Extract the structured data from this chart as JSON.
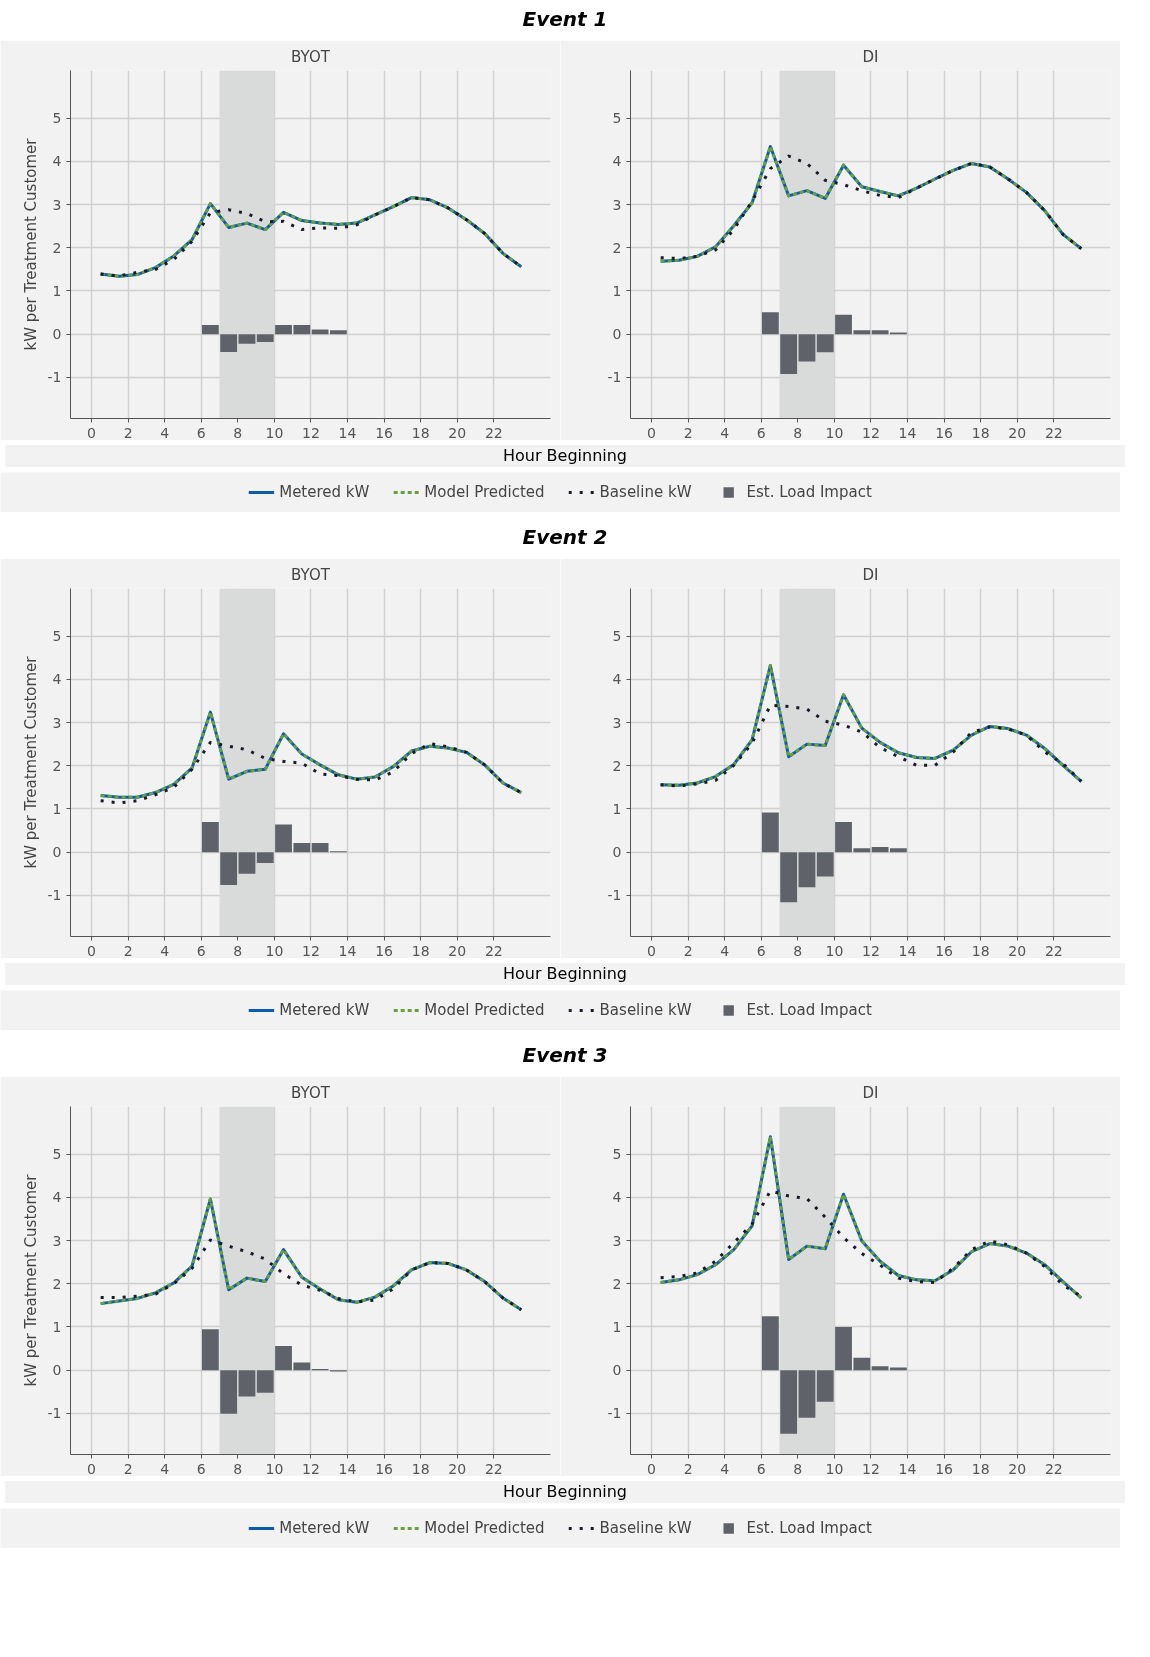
{
  "chart_data": [
    {
      "type": "line",
      "title": "Event 1",
      "subtitle": "BYOT",
      "xlabel": "Hour Beginning",
      "ylabel": "kW per Treatment Customer",
      "xlim": [
        -1.15,
        25.1
      ],
      "ylim": [
        -1.95,
        6.1
      ],
      "xticks": [
        0,
        2,
        4,
        6,
        8,
        10,
        12,
        14,
        16,
        18,
        20,
        22
      ],
      "yticks": [
        -1,
        0,
        1,
        2,
        3,
        4,
        5
      ],
      "grid": true,
      "legend": "bottom",
      "bands": [
        {
          "axis": "x",
          "from": 7,
          "to": 10,
          "color": "#d9dbdb"
        }
      ],
      "x": [
        0.5,
        1.5,
        2.5,
        3.5,
        4.5,
        5.5,
        6.5,
        7.5,
        8.5,
        9.5,
        10.5,
        11.5,
        12.5,
        13.5,
        14.5,
        15.5,
        16.5,
        17.5,
        18.5,
        19.5,
        20.5,
        21.5,
        22.5,
        23.5
      ],
      "series": [
        {
          "name": "Metered kW",
          "color": "#0b5cad",
          "line_style": "solid",
          "values": [
            1.39,
            1.34,
            1.38,
            1.54,
            1.81,
            2.19,
            3.02,
            2.47,
            2.57,
            2.42,
            2.82,
            2.63,
            2.57,
            2.54,
            2.57,
            2.76,
            2.95,
            3.16,
            3.11,
            2.92,
            2.65,
            2.33,
            1.87,
            1.56
          ]
        },
        {
          "name": "Model Predicted",
          "color": "#6a9f3f",
          "line_style": "dashed",
          "values": [
            1.39,
            1.34,
            1.38,
            1.54,
            1.81,
            2.19,
            3.02,
            2.47,
            2.57,
            2.42,
            2.82,
            2.63,
            2.57,
            2.54,
            2.57,
            2.76,
            2.95,
            3.16,
            3.11,
            2.92,
            2.65,
            2.33,
            1.87,
            1.56
          ]
        },
        {
          "name": "Baseline kW",
          "color": "#1a1a2a",
          "line_style": "dotted",
          "values": [
            1.39,
            1.35,
            1.43,
            1.5,
            1.73,
            2.15,
            2.81,
            2.88,
            2.79,
            2.6,
            2.61,
            2.42,
            2.46,
            2.45,
            2.53,
            2.76,
            2.95,
            3.16,
            3.11,
            2.92,
            2.65,
            2.33,
            1.87,
            1.56
          ]
        },
        {
          "name": "Est. Load Impact",
          "type": "bar",
          "color": "#5f6369",
          "x": [
            6.5,
            7.5,
            8.5,
            9.5,
            10.5,
            11.5,
            12.5,
            13.5
          ],
          "values": [
            0.21,
            -0.41,
            -0.22,
            -0.18,
            0.21,
            0.21,
            0.11,
            0.09
          ]
        }
      ]
    },
    {
      "type": "line",
      "subtitle": "DI",
      "xlim": [
        -1.15,
        25.1
      ],
      "ylim": [
        -1.95,
        6.1
      ],
      "xticks": [
        0,
        2,
        4,
        6,
        8,
        10,
        12,
        14,
        16,
        18,
        20,
        22
      ],
      "yticks": [
        -1,
        0,
        1,
        2,
        3,
        4,
        5
      ],
      "grid": true,
      "bands": [
        {
          "axis": "x",
          "from": 7,
          "to": 10,
          "color": "#d9dbdb"
        }
      ],
      "x": [
        0.5,
        1.5,
        2.5,
        3.5,
        4.5,
        5.5,
        6.5,
        7.5,
        8.5,
        9.5,
        10.5,
        11.5,
        12.5,
        13.5,
        14.5,
        15.5,
        16.5,
        17.5,
        18.5,
        19.5,
        20.5,
        21.5,
        22.5,
        23.5
      ],
      "series": [
        {
          "color": "#0b5cad",
          "line_style": "solid",
          "values": [
            1.69,
            1.71,
            1.8,
            2.02,
            2.51,
            3.04,
            4.34,
            3.2,
            3.32,
            3.14,
            3.91,
            3.41,
            3.3,
            3.2,
            3.38,
            3.59,
            3.79,
            3.95,
            3.87,
            3.59,
            3.28,
            2.86,
            2.31,
            1.98
          ]
        },
        {
          "color": "#6a9f3f",
          "line_style": "dashed",
          "values": [
            1.69,
            1.71,
            1.8,
            2.02,
            2.51,
            3.04,
            4.34,
            3.2,
            3.32,
            3.14,
            3.91,
            3.41,
            3.3,
            3.2,
            3.38,
            3.59,
            3.79,
            3.95,
            3.87,
            3.59,
            3.28,
            2.86,
            2.31,
            1.98
          ]
        },
        {
          "color": "#1a1a2a",
          "line_style": "dotted",
          "values": [
            1.77,
            1.75,
            1.8,
            1.95,
            2.42,
            3.08,
            3.83,
            4.12,
            3.95,
            3.56,
            3.46,
            3.32,
            3.21,
            3.16,
            3.38,
            3.59,
            3.79,
            3.95,
            3.87,
            3.59,
            3.28,
            2.86,
            2.31,
            1.98
          ]
        },
        {
          "type": "bar",
          "color": "#5f6369",
          "x": [
            6.5,
            7.5,
            8.5,
            9.5,
            10.5,
            11.5,
            12.5,
            13.5
          ],
          "values": [
            0.51,
            -0.92,
            -0.63,
            -0.42,
            0.45,
            0.09,
            0.09,
            0.04
          ]
        }
      ]
    },
    {
      "type": "line",
      "title": "Event 2",
      "subtitle": "BYOT",
      "xlabel": "Hour Beginning",
      "ylabel": "kW per Treatment Customer",
      "xlim": [
        -1.15,
        25.1
      ],
      "ylim": [
        -1.95,
        6.1
      ],
      "xticks": [
        0,
        2,
        4,
        6,
        8,
        10,
        12,
        14,
        16,
        18,
        20,
        22
      ],
      "yticks": [
        -1,
        0,
        1,
        2,
        3,
        4,
        5
      ],
      "grid": true,
      "legend": "bottom",
      "bands": [
        {
          "axis": "x",
          "from": 7,
          "to": 10,
          "color": "#d9dbdb"
        }
      ],
      "x": [
        0.5,
        1.5,
        2.5,
        3.5,
        4.5,
        5.5,
        6.5,
        7.5,
        8.5,
        9.5,
        10.5,
        11.5,
        12.5,
        13.5,
        14.5,
        15.5,
        16.5,
        17.5,
        18.5,
        19.5,
        20.5,
        21.5,
        22.5,
        23.5
      ],
      "series": [
        {
          "name": "Metered kW",
          "color": "#0b5cad",
          "line_style": "solid",
          "values": [
            1.31,
            1.27,
            1.27,
            1.38,
            1.57,
            1.95,
            3.24,
            1.69,
            1.87,
            1.92,
            2.74,
            2.27,
            2.02,
            1.79,
            1.69,
            1.74,
            1.98,
            2.34,
            2.45,
            2.41,
            2.31,
            2.02,
            1.6,
            1.38
          ]
        },
        {
          "name": "Model Predicted",
          "color": "#6a9f3f",
          "line_style": "dashed",
          "values": [
            1.31,
            1.27,
            1.27,
            1.38,
            1.57,
            1.95,
            3.24,
            1.69,
            1.87,
            1.92,
            2.74,
            2.27,
            2.02,
            1.79,
            1.69,
            1.74,
            1.98,
            2.34,
            2.45,
            2.41,
            2.31,
            2.02,
            1.6,
            1.38
          ]
        },
        {
          "name": "Baseline kW",
          "color": "#1a1a2a",
          "line_style": "dotted",
          "values": [
            1.19,
            1.14,
            1.19,
            1.33,
            1.5,
            1.92,
            2.54,
            2.45,
            2.37,
            2.17,
            2.1,
            2.06,
            1.81,
            1.77,
            1.69,
            1.67,
            1.86,
            2.28,
            2.51,
            2.44,
            2.31,
            2.02,
            1.6,
            1.38
          ]
        },
        {
          "name": "Est. Load Impact",
          "type": "bar",
          "color": "#5f6369",
          "x": [
            6.5,
            7.5,
            8.5,
            9.5,
            10.5,
            11.5,
            12.5,
            13.5
          ],
          "values": [
            0.7,
            -0.76,
            -0.5,
            -0.25,
            0.64,
            0.21,
            0.21,
            0.02
          ]
        }
      ]
    },
    {
      "type": "line",
      "subtitle": "DI",
      "xlim": [
        -1.15,
        25.1
      ],
      "ylim": [
        -1.95,
        6.1
      ],
      "xticks": [
        0,
        2,
        4,
        6,
        8,
        10,
        12,
        14,
        16,
        18,
        20,
        22
      ],
      "yticks": [
        -1,
        0,
        1,
        2,
        3,
        4,
        5
      ],
      "grid": true,
      "bands": [
        {
          "axis": "x",
          "from": 7,
          "to": 10,
          "color": "#d9dbdb"
        }
      ],
      "x": [
        0.5,
        1.5,
        2.5,
        3.5,
        4.5,
        5.5,
        6.5,
        7.5,
        8.5,
        9.5,
        10.5,
        11.5,
        12.5,
        13.5,
        14.5,
        15.5,
        16.5,
        17.5,
        18.5,
        19.5,
        20.5,
        21.5,
        22.5,
        23.5
      ],
      "series": [
        {
          "color": "#0b5cad",
          "line_style": "solid",
          "values": [
            1.56,
            1.55,
            1.6,
            1.75,
            2.03,
            2.6,
            4.32,
            2.21,
            2.5,
            2.47,
            3.64,
            2.87,
            2.54,
            2.3,
            2.19,
            2.17,
            2.36,
            2.71,
            2.91,
            2.86,
            2.71,
            2.4,
            2.01,
            1.64
          ]
        },
        {
          "color": "#6a9f3f",
          "line_style": "dashed",
          "values": [
            1.56,
            1.55,
            1.6,
            1.75,
            2.03,
            2.6,
            4.32,
            2.21,
            2.5,
            2.47,
            3.64,
            2.87,
            2.54,
            2.3,
            2.19,
            2.17,
            2.36,
            2.71,
            2.91,
            2.86,
            2.71,
            2.4,
            2.01,
            1.64
          ]
        },
        {
          "color": "#1a1a2a",
          "line_style": "dotted",
          "values": [
            1.56,
            1.53,
            1.58,
            1.66,
            2.01,
            2.52,
            3.4,
            3.37,
            3.31,
            3.03,
            2.94,
            2.78,
            2.42,
            2.21,
            2.01,
            2.01,
            2.32,
            2.77,
            2.9,
            2.85,
            2.71,
            2.32,
            2.05,
            1.64
          ]
        },
        {
          "type": "bar",
          "color": "#5f6369",
          "x": [
            6.5,
            7.5,
            8.5,
            9.5,
            10.5,
            11.5,
            12.5,
            13.5
          ],
          "values": [
            0.92,
            -1.16,
            -0.81,
            -0.56,
            0.7,
            0.09,
            0.12,
            0.09
          ]
        }
      ]
    },
    {
      "type": "line",
      "title": "Event 3",
      "subtitle": "BYOT",
      "xlabel": "Hour Beginning",
      "ylabel": "kW per Treatment Customer",
      "xlim": [
        -1.15,
        25.1
      ],
      "ylim": [
        -1.95,
        6.1
      ],
      "xticks": [
        0,
        2,
        4,
        6,
        8,
        10,
        12,
        14,
        16,
        18,
        20,
        22
      ],
      "yticks": [
        -1,
        0,
        1,
        2,
        3,
        4,
        5
      ],
      "grid": true,
      "legend": "bottom",
      "bands": [
        {
          "axis": "x",
          "from": 7,
          "to": 10,
          "color": "#d9dbdb"
        }
      ],
      "x": [
        0.5,
        1.5,
        2.5,
        3.5,
        4.5,
        5.5,
        6.5,
        7.5,
        8.5,
        9.5,
        10.5,
        11.5,
        12.5,
        13.5,
        14.5,
        15.5,
        16.5,
        17.5,
        18.5,
        19.5,
        20.5,
        21.5,
        22.5,
        23.5
      ],
      "series": [
        {
          "name": "Metered kW",
          "color": "#0b5cad",
          "line_style": "solid",
          "values": [
            1.54,
            1.6,
            1.66,
            1.79,
            2.02,
            2.41,
            3.96,
            1.86,
            2.13,
            2.05,
            2.79,
            2.15,
            1.88,
            1.63,
            1.57,
            1.69,
            1.95,
            2.32,
            2.49,
            2.47,
            2.32,
            2.05,
            1.67,
            1.4
          ]
        },
        {
          "name": "Model Predicted",
          "color": "#6a9f3f",
          "line_style": "dashed",
          "values": [
            1.54,
            1.6,
            1.66,
            1.79,
            2.02,
            2.41,
            3.96,
            1.86,
            2.13,
            2.05,
            2.79,
            2.15,
            1.88,
            1.63,
            1.57,
            1.69,
            1.95,
            2.32,
            2.49,
            2.47,
            2.32,
            2.05,
            1.67,
            1.4
          ]
        },
        {
          "name": "Baseline kW",
          "color": "#1a1a2a",
          "line_style": "dotted",
          "values": [
            1.68,
            1.68,
            1.71,
            1.76,
            2.0,
            2.36,
            3.01,
            2.87,
            2.74,
            2.57,
            2.23,
            1.97,
            1.85,
            1.66,
            1.58,
            1.62,
            1.88,
            2.32,
            2.49,
            2.47,
            2.32,
            2.05,
            1.67,
            1.4
          ]
        },
        {
          "name": "Est. Load Impact",
          "type": "bar",
          "color": "#5f6369",
          "x": [
            6.5,
            7.5,
            8.5,
            9.5,
            10.5,
            11.5,
            12.5,
            13.5
          ],
          "values": [
            0.95,
            -1.01,
            -0.61,
            -0.52,
            0.56,
            0.18,
            0.03,
            -0.03
          ]
        }
      ]
    },
    {
      "type": "line",
      "subtitle": "DI",
      "xlim": [
        -1.15,
        25.1
      ],
      "ylim": [
        -1.95,
        6.1
      ],
      "xticks": [
        0,
        2,
        4,
        6,
        8,
        10,
        12,
        14,
        16,
        18,
        20,
        22
      ],
      "yticks": [
        -1,
        0,
        1,
        2,
        3,
        4,
        5
      ],
      "grid": true,
      "bands": [
        {
          "axis": "x",
          "from": 7,
          "to": 10,
          "color": "#d9dbdb"
        }
      ],
      "x": [
        0.5,
        1.5,
        2.5,
        3.5,
        4.5,
        5.5,
        6.5,
        7.5,
        8.5,
        9.5,
        10.5,
        11.5,
        12.5,
        13.5,
        14.5,
        15.5,
        16.5,
        17.5,
        18.5,
        19.5,
        20.5,
        21.5,
        22.5,
        23.5
      ],
      "series": [
        {
          "color": "#0b5cad",
          "line_style": "solid",
          "values": [
            2.03,
            2.09,
            2.21,
            2.44,
            2.79,
            3.34,
            5.4,
            2.56,
            2.87,
            2.81,
            4.07,
            2.99,
            2.52,
            2.19,
            2.09,
            2.07,
            2.32,
            2.74,
            2.93,
            2.87,
            2.71,
            2.44,
            2.05,
            1.67
          ]
        },
        {
          "color": "#6a9f3f",
          "line_style": "dashed",
          "values": [
            2.03,
            2.09,
            2.21,
            2.44,
            2.79,
            3.34,
            5.4,
            2.56,
            2.87,
            2.81,
            4.07,
            2.99,
            2.52,
            2.19,
            2.09,
            2.07,
            2.32,
            2.74,
            2.93,
            2.87,
            2.71,
            2.44,
            2.05,
            1.67
          ]
        },
        {
          "color": "#1a1a2a",
          "line_style": "dotted",
          "values": [
            2.14,
            2.17,
            2.25,
            2.52,
            2.95,
            3.38,
            4.15,
            4.03,
            3.97,
            3.54,
            3.07,
            2.7,
            2.43,
            2.13,
            2.05,
            2.03,
            2.36,
            2.79,
            2.99,
            2.9,
            2.71,
            2.4,
            1.97,
            1.71
          ]
        },
        {
          "type": "bar",
          "color": "#5f6369",
          "x": [
            6.5,
            7.5,
            8.5,
            9.5,
            10.5,
            11.5,
            12.5,
            13.5
          ],
          "values": [
            1.25,
            -1.47,
            -1.1,
            -0.73,
            1.0,
            0.29,
            0.09,
            0.06
          ]
        }
      ]
    }
  ]
}
